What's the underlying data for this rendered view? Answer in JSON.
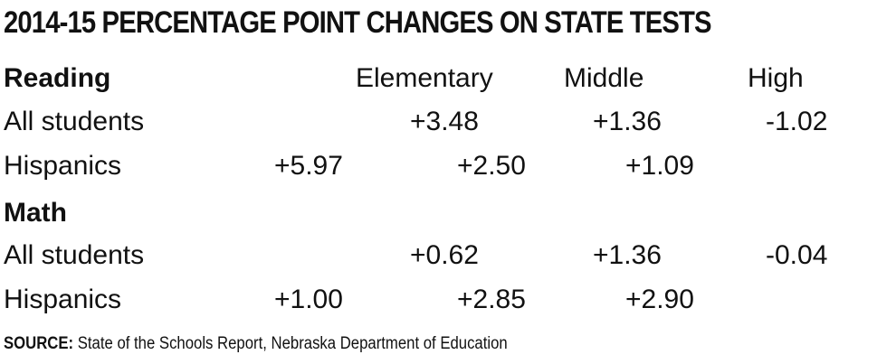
{
  "chart_data": {
    "type": "table",
    "title": "2014-15 PERCENTAGE POINT CHANGES ON STATE TESTS",
    "columns": [
      "Elementary",
      "Middle",
      "High"
    ],
    "sections": [
      {
        "name": "Reading",
        "rows": [
          {
            "label": "All students",
            "values": [
              "+3.48",
              "+1.36",
              "-1.02"
            ]
          },
          {
            "label": "Hispanics",
            "values": [
              "+5.97",
              "+2.50",
              "+1.09"
            ]
          }
        ]
      },
      {
        "name": "Math",
        "rows": [
          {
            "label": "All students",
            "values": [
              "+0.62",
              "+1.36",
              "-0.04"
            ]
          },
          {
            "label": "Hispanics",
            "values": [
              "+1.00",
              "+2.85",
              "+2.90"
            ]
          }
        ]
      }
    ],
    "source_label": "SOURCE:",
    "source_text": "State of the Schools Report, Nebraska Department of Education"
  }
}
